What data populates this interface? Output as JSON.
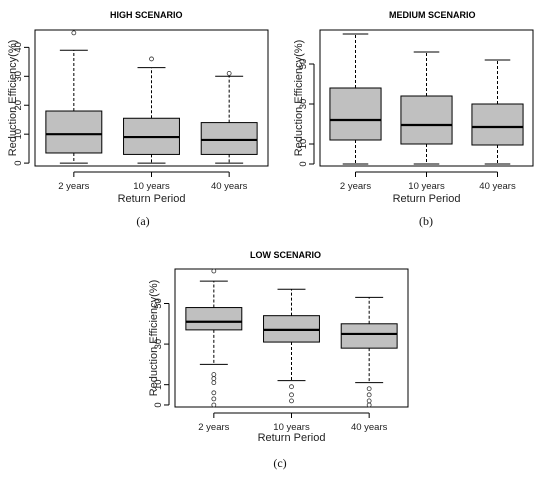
{
  "chart_data": [
    {
      "type": "box",
      "title": "HIGH SCENARIO",
      "xlabel": "Return Period",
      "ylabel": "Reduction Efficiency(%)",
      "caption": "(a)",
      "categories": [
        "2 years",
        "10 years",
        "40 years"
      ],
      "yticks": [
        0,
        10,
        20,
        30,
        40
      ],
      "ylim": [
        -1,
        46
      ],
      "boxes": [
        {
          "min": 0,
          "q1": 3.5,
          "median": 10,
          "q3": 18,
          "max": 39,
          "outliers": [
            45
          ]
        },
        {
          "min": 0,
          "q1": 3,
          "median": 9,
          "q3": 15.5,
          "max": 33,
          "outliers": [
            36
          ]
        },
        {
          "min": 0,
          "q1": 3,
          "median": 8,
          "q3": 14,
          "max": 30,
          "outliers": [
            31
          ]
        }
      ]
    },
    {
      "type": "box",
      "title": "MEDIUM SCENARIO",
      "xlabel": "Return Period",
      "ylabel": "Reduction Efficiency(%)",
      "caption": "(b)",
      "categories": [
        "2 years",
        "10 years",
        "40 years"
      ],
      "yticks": [
        0,
        10,
        30,
        50
      ],
      "ylim": [
        -1,
        67
      ],
      "boxes": [
        {
          "min": 0,
          "q1": 12,
          "median": 22,
          "q3": 38,
          "max": 65,
          "outliers": []
        },
        {
          "min": 0,
          "q1": 10,
          "median": 19.5,
          "q3": 34,
          "max": 56,
          "outliers": []
        },
        {
          "min": 0,
          "q1": 9.5,
          "median": 18.5,
          "q3": 30,
          "max": 52,
          "outliers": []
        }
      ]
    },
    {
      "type": "box",
      "title": "LOW SCENARIO",
      "xlabel": "Return Period",
      "ylabel": "Reduction Efficiency(%)",
      "caption": "(c)",
      "categories": [
        "2 years",
        "10 years",
        "40 years"
      ],
      "yticks": [
        0,
        10,
        30,
        50
      ],
      "ylim": [
        -1,
        67
      ],
      "boxes": [
        {
          "min": 20,
          "q1": 37,
          "median": 41,
          "q3": 48,
          "max": 61,
          "outliers": [
            66,
            15,
            13,
            11,
            6,
            3,
            0
          ]
        },
        {
          "min": 12,
          "q1": 31,
          "median": 37,
          "q3": 44,
          "max": 57,
          "outliers": [
            9,
            5,
            2
          ]
        },
        {
          "min": 11,
          "q1": 28,
          "median": 35,
          "q3": 40,
          "max": 53,
          "outliers": [
            8,
            5,
            2,
            0
          ]
        }
      ]
    }
  ]
}
